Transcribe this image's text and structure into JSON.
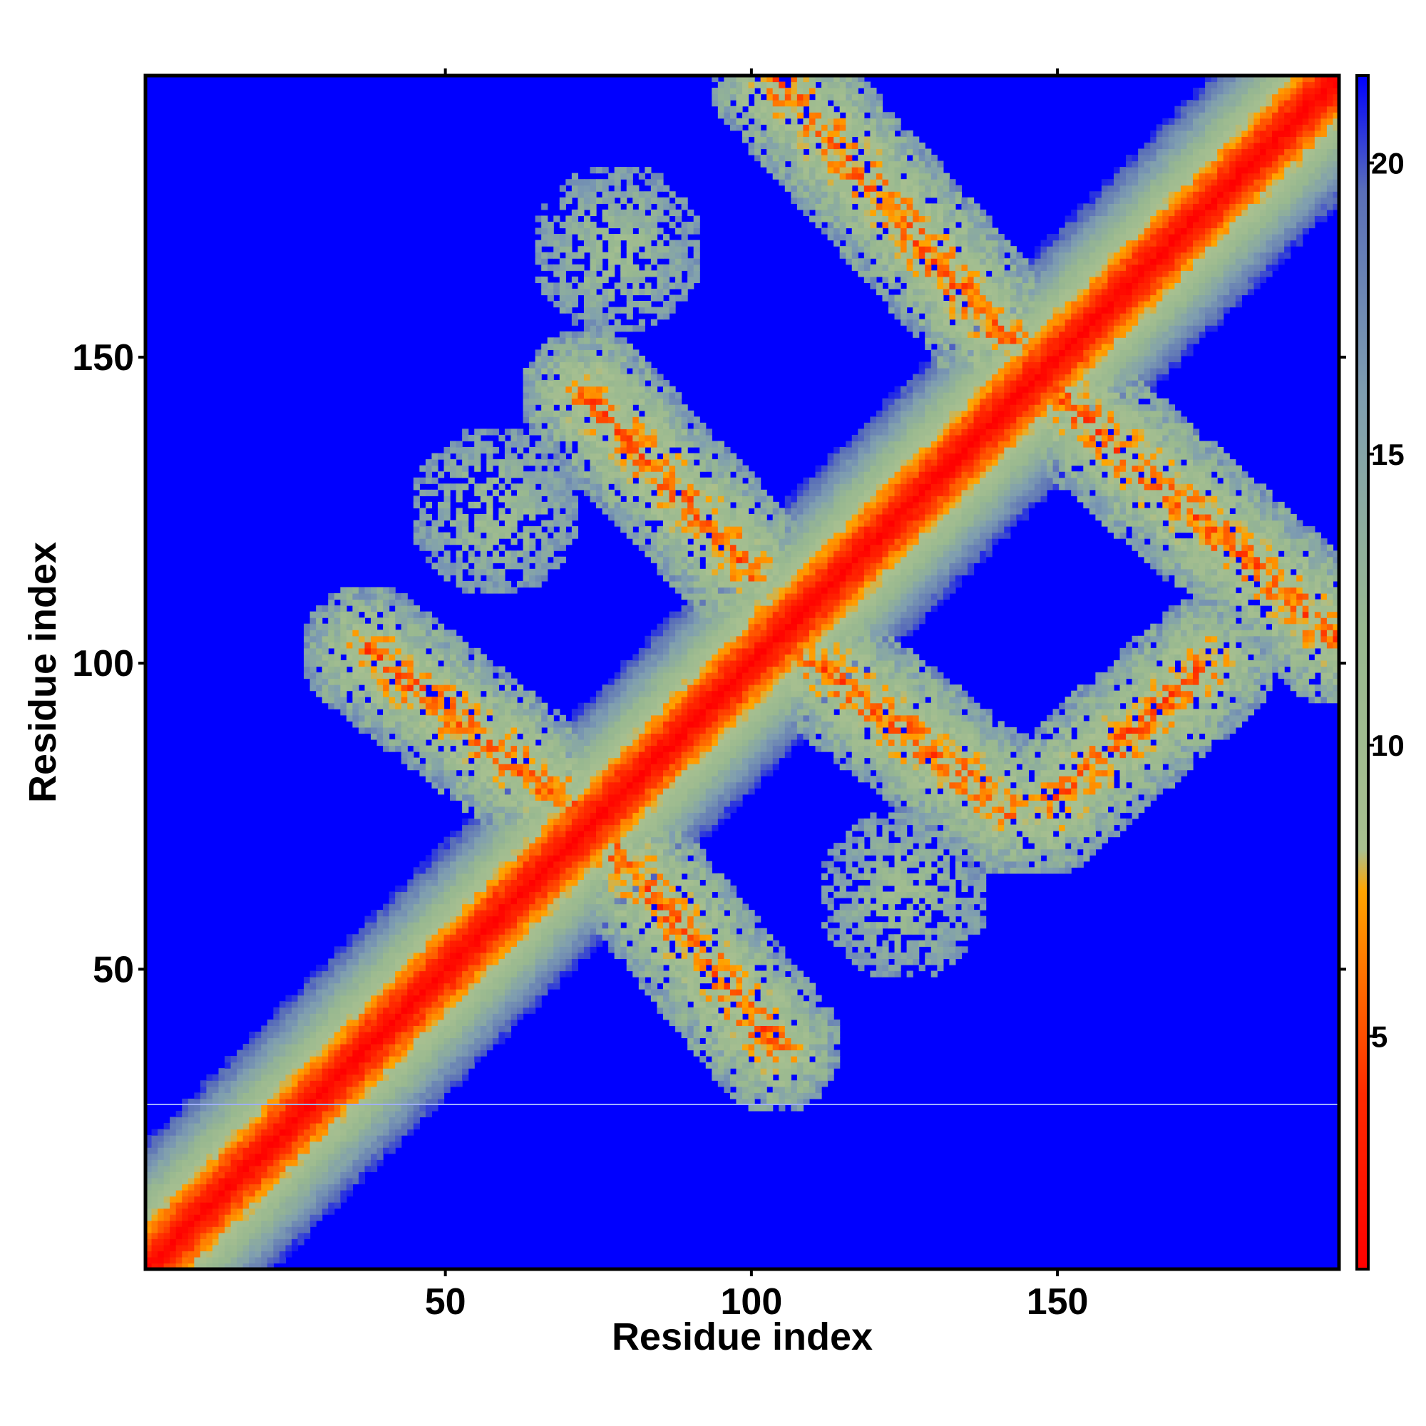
{
  "chart_data": {
    "type": "heatmap",
    "subtype": "distance-map",
    "xlabel": "Residue index",
    "ylabel": "Residue index",
    "xlim": [
      1,
      196
    ],
    "ylim": [
      1,
      196
    ],
    "x_ticks": [
      50,
      100,
      150
    ],
    "y_ticks": [
      50,
      100,
      150
    ],
    "colorbar": {
      "ticks": [
        5,
        10,
        15,
        20
      ],
      "range": [
        1,
        21.5
      ],
      "stops": [
        {
          "value": 1,
          "color": "#ff0000"
        },
        {
          "value": 4,
          "color": "#ff2a00"
        },
        {
          "value": 7.5,
          "color": "#ffa500"
        },
        {
          "value": 8.2,
          "color": "#a8c090"
        },
        {
          "value": 12,
          "color": "#98b890"
        },
        {
          "value": 16,
          "color": "#7f9eb0"
        },
        {
          "value": 19.5,
          "color": "#5a6fb8"
        },
        {
          "value": 21.5,
          "color": "#0000ff"
        }
      ]
    },
    "background_color": "#0000ff",
    "features": [
      {
        "name": "main-diagonal",
        "from": [
          1,
          1
        ],
        "to": [
          196,
          196
        ]
      },
      {
        "name": "antidiagonal-band",
        "from": [
          37,
          102
        ],
        "to": [
          71,
          76
        ],
        "note": "lower-left block"
      },
      {
        "name": "antidiagonal-band",
        "from": [
          74,
          74
        ],
        "to": [
          104,
          37
        ]
      },
      {
        "name": "antidiagonal-band",
        "from": [
          73,
          144
        ],
        "to": [
          100,
          115
        ]
      },
      {
        "name": "antidiagonal-band",
        "from": [
          103,
          106
        ],
        "to": [
          142,
          76
        ]
      },
      {
        "name": "antidiagonal-band",
        "from": [
          104,
          196
        ],
        "to": [
          142,
          153
        ]
      },
      {
        "name": "antidiagonal-band",
        "from": [
          148,
          146
        ],
        "to": [
          196,
          104
        ]
      },
      {
        "name": "antidiagonal-band",
        "from": [
          148,
          76
        ],
        "to": [
          175,
          100
        ]
      },
      {
        "name": "patch",
        "center": [
          78,
          168
        ]
      },
      {
        "name": "patch",
        "center": [
          58,
          125
        ]
      },
      {
        "name": "patch",
        "center": [
          125,
          62
        ]
      }
    ]
  }
}
